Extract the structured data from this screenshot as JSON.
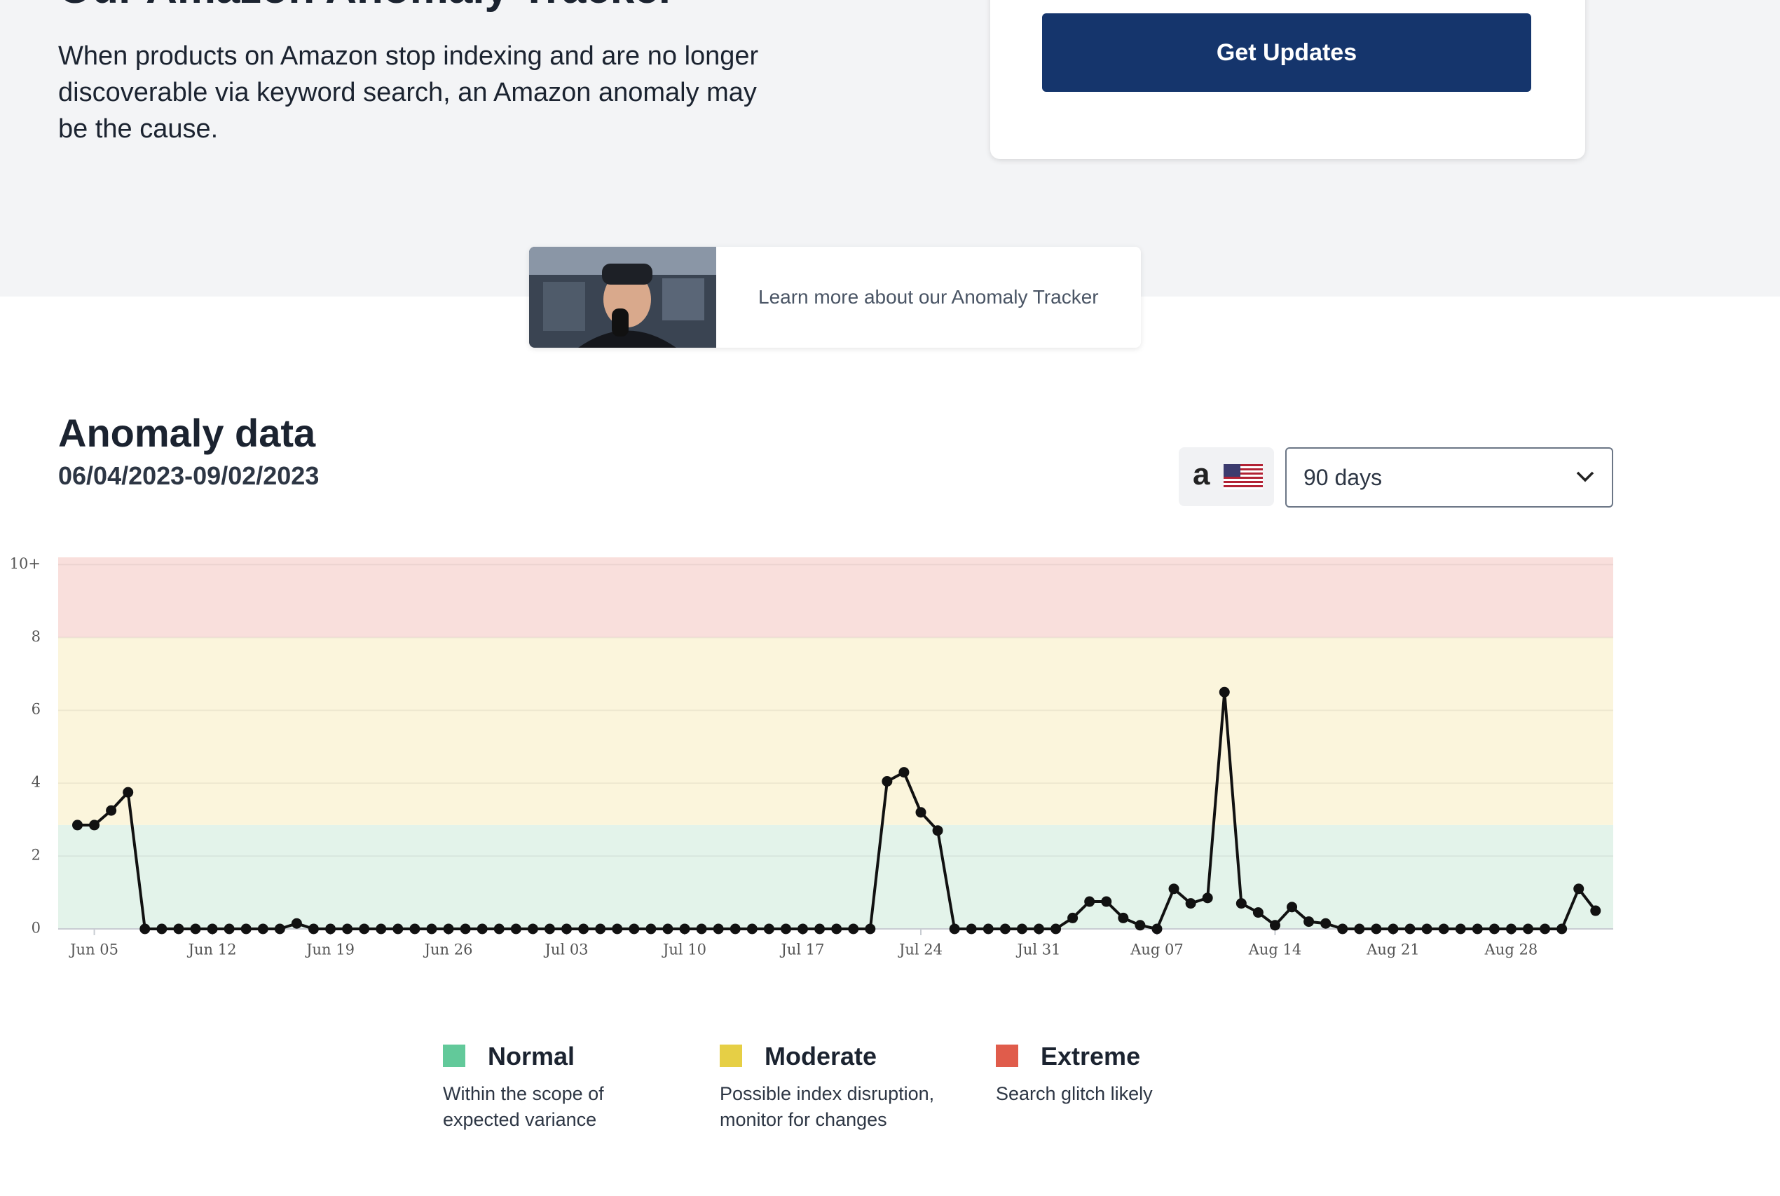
{
  "header": {
    "title": "Our Amazon Anomaly Tracker",
    "description": "When products on Amazon stop indexing and are no longer discoverable via keyword search, an Amazon anomaly may be the cause."
  },
  "signup": {
    "button": "Get Updates"
  },
  "video": {
    "caption": "Learn more about our Anomaly Tracker"
  },
  "section": {
    "title": "Anomaly data",
    "date_range": "06/04/2023-09/02/2023",
    "marketplace_logo": "a",
    "period": "90 days"
  },
  "chart_data": {
    "type": "line",
    "categories": [
      null,
      "Jun 05",
      null,
      null,
      null,
      null,
      null,
      null,
      "Jun 12",
      null,
      null,
      null,
      null,
      null,
      null,
      "Jun 19",
      null,
      null,
      null,
      null,
      null,
      null,
      "Jun 26",
      null,
      null,
      null,
      null,
      null,
      null,
      "Jul 03",
      null,
      null,
      null,
      null,
      null,
      null,
      "Jul 10",
      null,
      null,
      null,
      null,
      null,
      null,
      "Jul 17",
      null,
      null,
      null,
      null,
      null,
      null,
      "Jul 24",
      null,
      null,
      null,
      null,
      null,
      null,
      "Jul 31",
      null,
      null,
      null,
      null,
      null,
      null,
      "Aug 07",
      null,
      null,
      null,
      null,
      null,
      null,
      "Aug 14",
      null,
      null,
      null,
      null,
      null,
      null,
      "Aug 21",
      null,
      null,
      null,
      null,
      null,
      null,
      "Aug 28",
      null,
      null,
      null,
      null,
      null
    ],
    "series": [
      {
        "color": "#111111",
        "values": [
          2.85,
          2.85,
          3.25,
          3.75,
          0,
          0,
          0,
          0,
          0,
          0,
          0,
          0,
          0,
          0.15,
          0,
          0,
          0,
          0,
          0,
          0,
          0,
          0,
          0,
          0,
          0,
          0,
          0,
          0,
          0,
          0,
          0,
          0,
          0,
          0,
          0,
          0,
          0,
          0,
          0,
          0,
          0,
          0,
          0,
          0,
          0,
          0,
          0,
          0,
          4.05,
          4.3,
          3.2,
          2.7,
          0,
          0,
          0,
          0,
          0,
          0,
          0,
          0.3,
          0.75,
          0.75,
          0.3,
          0.1,
          0,
          1.1,
          0.7,
          0.85,
          6.5,
          0.7,
          0.45,
          0.1,
          0.6,
          0.2,
          0.15,
          0,
          0,
          0,
          0,
          0,
          0,
          0,
          0,
          0,
          0,
          0,
          0,
          0,
          0,
          1.1,
          0.5
        ]
      }
    ],
    "ylim": [
      0,
      10.2
    ],
    "yticks": [
      0,
      2,
      4,
      6,
      8,
      {
        "value": 10,
        "label": "10+"
      }
    ],
    "grid": true,
    "zones": [
      {
        "name": "Normal",
        "description": "Within the scope of expected variance",
        "color": "#62c99a",
        "band_color": "#e3f3ea",
        "from": 0,
        "to": 2.85
      },
      {
        "name": "Moderate",
        "description": "Possible index disruption, monitor for changes",
        "color": "#e6cf45",
        "band_color": "#fbf5dc",
        "from": 2.85,
        "to": 8
      },
      {
        "name": "Extreme",
        "description": "Search glitch likely",
        "color": "#e05c4b",
        "band_color": "#f9dfdc",
        "from": 8,
        "to": 10.2
      }
    ]
  }
}
